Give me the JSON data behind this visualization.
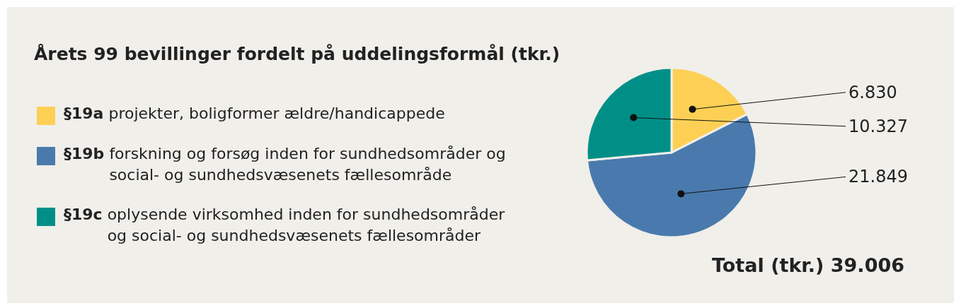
{
  "chart_data": {
    "type": "pie",
    "title": "Årets 99 bevillinger fordelt på uddelingsformål (tkr.)",
    "categories": [
      "§19a projekter, boligformer ældre/handicappede",
      "§19b forskning og forsøg inden for sundhedsområder og social- og sundhedsvæsenets fællesområde",
      "§19c oplysende virksomhed inden for sundhedsområder og social- og sundhedsvæsenets fællesområder"
    ],
    "values": [
      6830,
      21849,
      10327
    ],
    "value_labels": [
      "6.830",
      "21.849",
      "10.327"
    ],
    "colors": [
      "#fdd055",
      "#4a7aad",
      "#008f87"
    ],
    "legend": "left",
    "annotations": [
      "Total (tkr.) 39.006"
    ]
  }
}
